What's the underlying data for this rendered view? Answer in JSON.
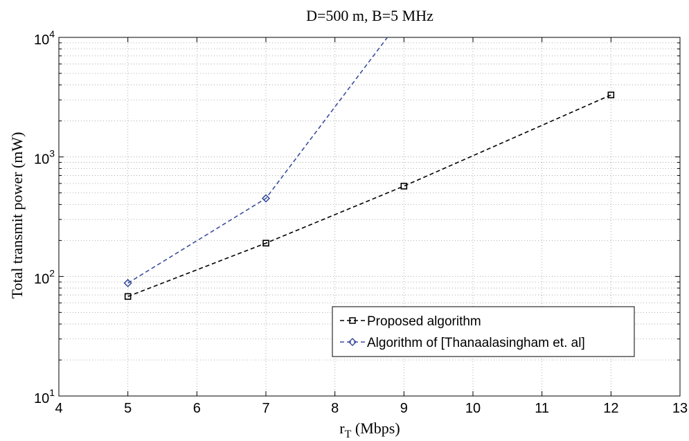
{
  "chart_data": {
    "type": "line",
    "title": "D=500 m, B=5 MHz",
    "xlabel_main": "r",
    "xlabel_sub": "T",
    "xlabel_rest": " (Mbps)",
    "ylabel": "Total transmit power (mW)",
    "xlim": [
      4,
      13
    ],
    "ylim": [
      10,
      10000
    ],
    "yscale": "log",
    "grid": true,
    "x_ticks": [
      "4",
      "5",
      "6",
      "7",
      "8",
      "9",
      "10",
      "11",
      "12",
      "13"
    ],
    "y_ticks": [
      {
        "base": "10",
        "exp": "1"
      },
      {
        "base": "10",
        "exp": "2"
      },
      {
        "base": "10",
        "exp": "3"
      },
      {
        "base": "10",
        "exp": "4"
      }
    ],
    "legend_position": "bottom-right",
    "series": [
      {
        "name": "Proposed algorithm",
        "color": "#000000",
        "marker": "square",
        "line": "dashed",
        "x": [
          5,
          7,
          9,
          12
        ],
        "y": [
          68,
          190,
          570,
          3300
        ]
      },
      {
        "name": "Algorithm of [Thanaalasingham et. al]",
        "color": "#3b4f9c",
        "marker": "diamond",
        "line": "dashed",
        "x": [
          5,
          7,
          8.76
        ],
        "y": [
          88,
          450,
          10000
        ],
        "marker_indices": [
          0,
          1
        ]
      }
    ]
  }
}
